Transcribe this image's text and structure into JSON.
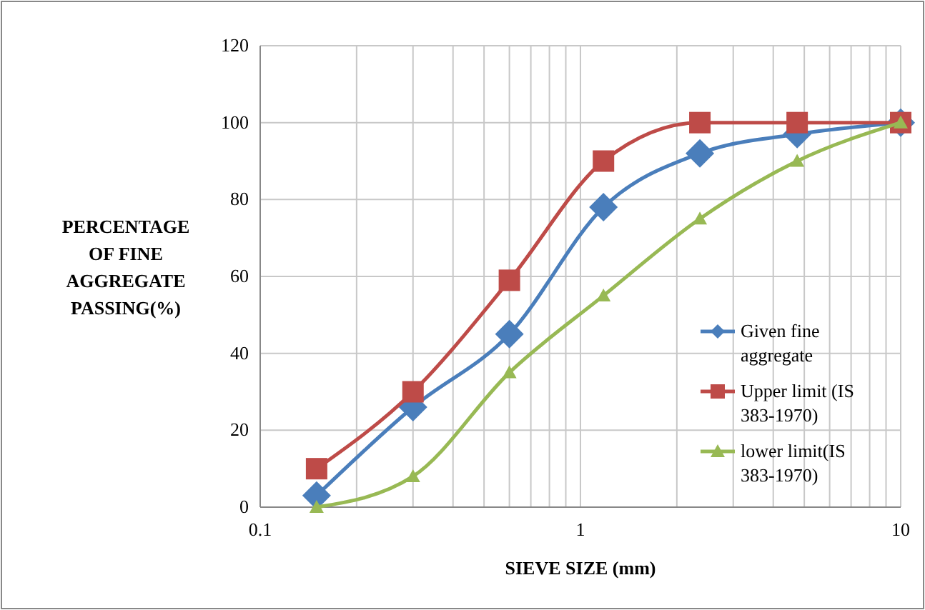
{
  "chart_data": {
    "type": "line",
    "xlabel": "SIEVE SIZE (mm)",
    "ylabel": "PERCENTAGE\nOF FINE\nAGGREGATE\nPASSING(%)",
    "x": [
      0.15,
      0.3,
      0.6,
      1.18,
      2.36,
      4.75,
      10
    ],
    "series": [
      {
        "name": "Given fine aggregate",
        "color": "#4a7ebb",
        "marker": "diamond",
        "values": [
          3,
          26,
          45,
          78,
          92,
          97,
          100
        ]
      },
      {
        "name": "Upper limit (IS 383-1970)",
        "color": "#be4b48",
        "marker": "square",
        "values": [
          10,
          30,
          59,
          90,
          100,
          100,
          100
        ]
      },
      {
        "name": "lower limit(IS 383-1970)",
        "color": "#98b954",
        "marker": "triangle",
        "values": [
          0,
          8,
          35,
          55,
          75,
          90,
          100
        ]
      }
    ],
    "log": "x",
    "xlim": [
      0.1,
      10
    ],
    "ylim": [
      0,
      120
    ],
    "xticks": [
      {
        "value": 0.1,
        "label": "0.1"
      },
      {
        "value": 0.2,
        "label": null
      },
      {
        "value": 0.3,
        "label": null
      },
      {
        "value": 0.4,
        "label": null
      },
      {
        "value": 0.5,
        "label": null
      },
      {
        "value": 0.6,
        "label": null
      },
      {
        "value": 0.7,
        "label": null
      },
      {
        "value": 0.8,
        "label": null
      },
      {
        "value": 0.9,
        "label": null
      },
      {
        "value": 1,
        "label": "1"
      },
      {
        "value": 2,
        "label": null
      },
      {
        "value": 3,
        "label": null
      },
      {
        "value": 4,
        "label": null
      },
      {
        "value": 5,
        "label": null
      },
      {
        "value": 6,
        "label": null
      },
      {
        "value": 7,
        "label": null
      },
      {
        "value": 8,
        "label": null
      },
      {
        "value": 9,
        "label": null
      },
      {
        "value": 10,
        "label": "10"
      }
    ],
    "yticks": [
      0,
      20,
      40,
      60,
      80,
      100,
      120
    ],
    "grid": true,
    "legend": "right",
    "line_style": "solid"
  }
}
